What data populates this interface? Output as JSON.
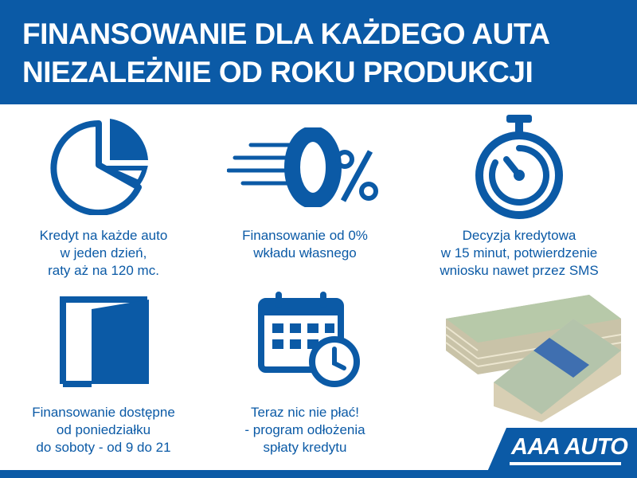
{
  "header": {
    "line1": "FINANSOWANIE DLA KAŻDEGO AUTA",
    "line2": "NIEZALEŻNIE OD ROKU PRODUKCJI"
  },
  "features": [
    {
      "icon": "pie-chart-icon",
      "lines": [
        "Kredyt na każde auto",
        "w jeden dzień,",
        "raty aż na 120 mc."
      ]
    },
    {
      "icon": "zero-percent-icon",
      "lines": [
        "Finansowanie od 0%",
        "wkładu własnego"
      ]
    },
    {
      "icon": "stopwatch-icon",
      "lines": [
        "Decyzja kredytowa",
        "w 15 minut, potwierdzenie",
        "wniosku nawet przez SMS"
      ]
    },
    {
      "icon": "door-icon",
      "lines": [
        "Finansowanie dostępne",
        "od poniedziałku",
        "do soboty - od 9 do 21"
      ]
    },
    {
      "icon": "calendar-clock-icon",
      "lines": [
        "Teraz nic nie płać!",
        "- program odłożenia",
        "spłaty kredytu"
      ]
    }
  ],
  "logo": "AAA AUTO",
  "colors": {
    "brand_blue": "#0b5aa6",
    "white": "#ffffff"
  }
}
